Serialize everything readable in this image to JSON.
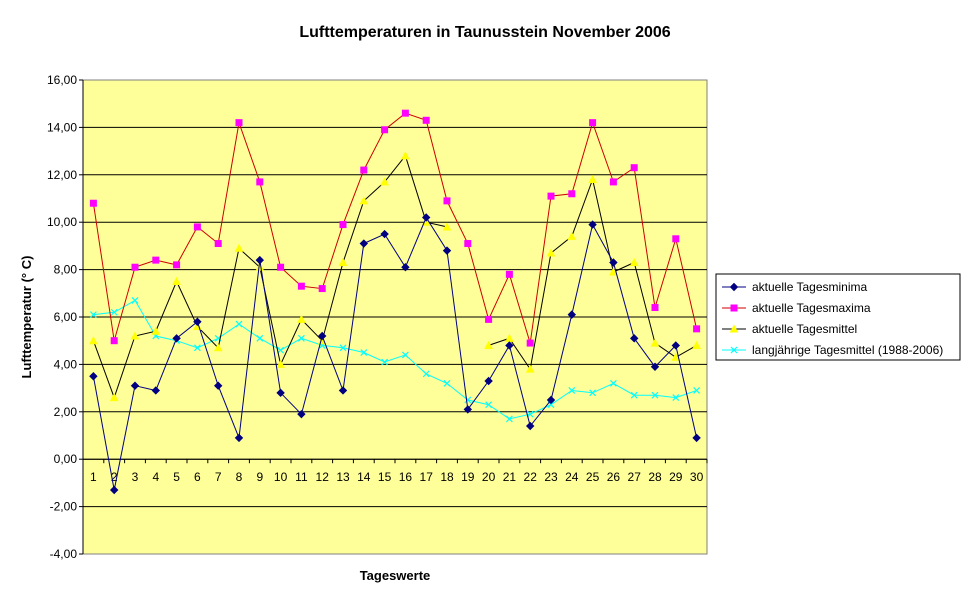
{
  "chart_data": {
    "type": "line",
    "title": "Lufttemperaturen in Taunusstein  November  2006",
    "xlabel": "Tageswerte",
    "ylabel": "Lufttemperatur (° C)",
    "x": [
      1,
      2,
      3,
      4,
      5,
      6,
      7,
      8,
      9,
      10,
      11,
      12,
      13,
      14,
      15,
      16,
      17,
      18,
      19,
      20,
      21,
      22,
      23,
      24,
      25,
      26,
      27,
      28,
      29,
      30
    ],
    "x_tick_labels": [
      "1",
      "2",
      "3",
      "4",
      "5",
      "6",
      "7",
      "8",
      "9",
      "10",
      "11",
      "12",
      "13",
      "14",
      "15",
      "16",
      "17",
      "18",
      "19",
      "20",
      "21",
      "22",
      "23",
      "24",
      "25",
      "26",
      "27",
      "28",
      "29",
      "30"
    ],
    "ylim": [
      -4,
      16
    ],
    "y_ticks": [
      -4,
      -2,
      0,
      2,
      4,
      6,
      8,
      10,
      12,
      14,
      16
    ],
    "y_tick_labels": [
      "-4,00",
      "-2,00",
      "0,00",
      "2,00",
      "4,00",
      "6,00",
      "8,00",
      "10,00",
      "12,00",
      "14,00",
      "16,00"
    ],
    "grid": true,
    "legend_position": "right",
    "plot_background": "#ffff99",
    "series": [
      {
        "name": "aktuelle Tagesminima",
        "color": "#000080",
        "line_color": "#000080",
        "marker": "diamond",
        "values": [
          3.5,
          -1.3,
          3.1,
          2.9,
          5.1,
          5.8,
          3.1,
          0.9,
          8.4,
          2.8,
          1.9,
          5.2,
          2.9,
          9.1,
          9.5,
          8.1,
          10.2,
          8.8,
          2.1,
          3.3,
          4.8,
          1.4,
          2.5,
          6.1,
          9.9,
          8.3,
          5.1,
          3.9,
          4.8,
          0.9
        ]
      },
      {
        "name": "aktuelle Tagesmaxima",
        "color": "#ff00ff",
        "line_color": "#cc0000",
        "marker": "square",
        "values": [
          10.8,
          5.0,
          8.1,
          8.4,
          8.2,
          9.8,
          9.1,
          14.2,
          11.7,
          8.1,
          7.3,
          7.2,
          9.9,
          12.2,
          13.9,
          14.6,
          14.3,
          10.9,
          9.1,
          5.9,
          7.8,
          4.9,
          11.1,
          11.2,
          14.2,
          11.7,
          12.3,
          6.4,
          9.3,
          5.5
        ]
      },
      {
        "name": "aktuelle Tagesmittel",
        "color": "#ffff00",
        "line_color": "#000000",
        "marker": "triangle",
        "values": [
          5.0,
          2.6,
          5.2,
          5.4,
          7.5,
          5.6,
          4.7,
          8.9,
          8.1,
          4.0,
          5.9,
          5.0,
          8.3,
          10.9,
          11.7,
          12.8,
          10.0,
          9.8,
          null,
          4.8,
          5.1,
          3.8,
          8.7,
          9.4,
          11.8,
          7.9,
          8.3,
          4.9,
          4.3,
          4.8
        ]
      },
      {
        "name": "langjährige Tagesmittel (1988-2006)",
        "color": "#00ffff",
        "line_color": "#00ffff",
        "marker": "x",
        "values": [
          6.1,
          6.2,
          6.7,
          5.2,
          5.0,
          4.7,
          5.1,
          5.7,
          5.1,
          4.6,
          5.1,
          4.8,
          4.7,
          4.5,
          4.1,
          4.4,
          3.6,
          3.2,
          2.5,
          2.3,
          1.7,
          1.9,
          2.3,
          2.9,
          2.8,
          3.2,
          2.7,
          2.7,
          2.6,
          2.9
        ]
      }
    ]
  }
}
